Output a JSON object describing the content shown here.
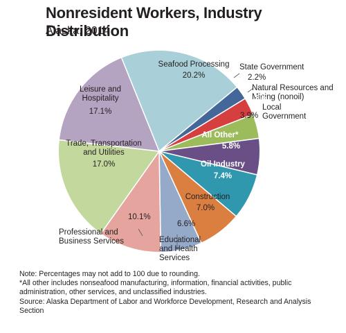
{
  "chart_data": {
    "type": "pie",
    "title": "Nonresident Workers, Industry Distribution",
    "subtitle": "Alaska, 2014",
    "unit": "%",
    "start_angle_deg": -22,
    "slices": [
      {
        "label_lines": [
          "Seafood Processing"
        ],
        "value_text": "20.2%",
        "value": 20.2,
        "color": "#a9cfd8"
      },
      {
        "label_lines": [
          "State Government"
        ],
        "value_text": "2.2%",
        "value": 2.2,
        "color": "#44679a"
      },
      {
        "label_lines": [
          "Natural Resources and",
          "Mining (nonoil)"
        ],
        "value_text": "2.8%",
        "value": 2.8,
        "color": "#d63f3f"
      },
      {
        "label_lines": [
          "Local",
          "Government"
        ],
        "value_text": "3.9%",
        "value": 3.9,
        "color": "#9cbc5c"
      },
      {
        "label_lines": [
          "All Other*"
        ],
        "value_text": "5.8%",
        "value": 5.8,
        "color": "#6a4f86"
      },
      {
        "label_lines": [
          "Oil Industry"
        ],
        "value_text": "7.4%",
        "value": 7.4,
        "color": "#2f97ae"
      },
      {
        "label_lines": [
          "Construction"
        ],
        "value_text": "7.0%",
        "value": 7.0,
        "color": "#da7f3f"
      },
      {
        "label_lines": [
          "Educational",
          "and Health",
          "Services"
        ],
        "value_text": "6.6%",
        "value": 6.6,
        "color": "#95a9c9"
      },
      {
        "label_lines": [
          "Professional and",
          "Business Services"
        ],
        "value_text": "10.1%",
        "value": 10.1,
        "color": "#e6a49e"
      },
      {
        "label_lines": [
          "Trade, Transportation",
          "and Utilities"
        ],
        "value_text": "17.0%",
        "value": 17.0,
        "color": "#c3d89c"
      },
      {
        "label_lines": [
          "Leisure and",
          "Hospitality"
        ],
        "value_text": "17.1%",
        "value": 17.1,
        "color": "#b4a3c1"
      }
    ]
  },
  "notes": {
    "line1": "Note: Percentages may not add to 100 due to rounding.",
    "line2": "*All other includes nonseafood manufacturing, information, financial activities, public",
    "line3": "administration, other services, and unclassified industries.",
    "line4": "Source: Alaska Department of Labor and Workforce Development, Research and Analysis",
    "line5": "Section"
  }
}
